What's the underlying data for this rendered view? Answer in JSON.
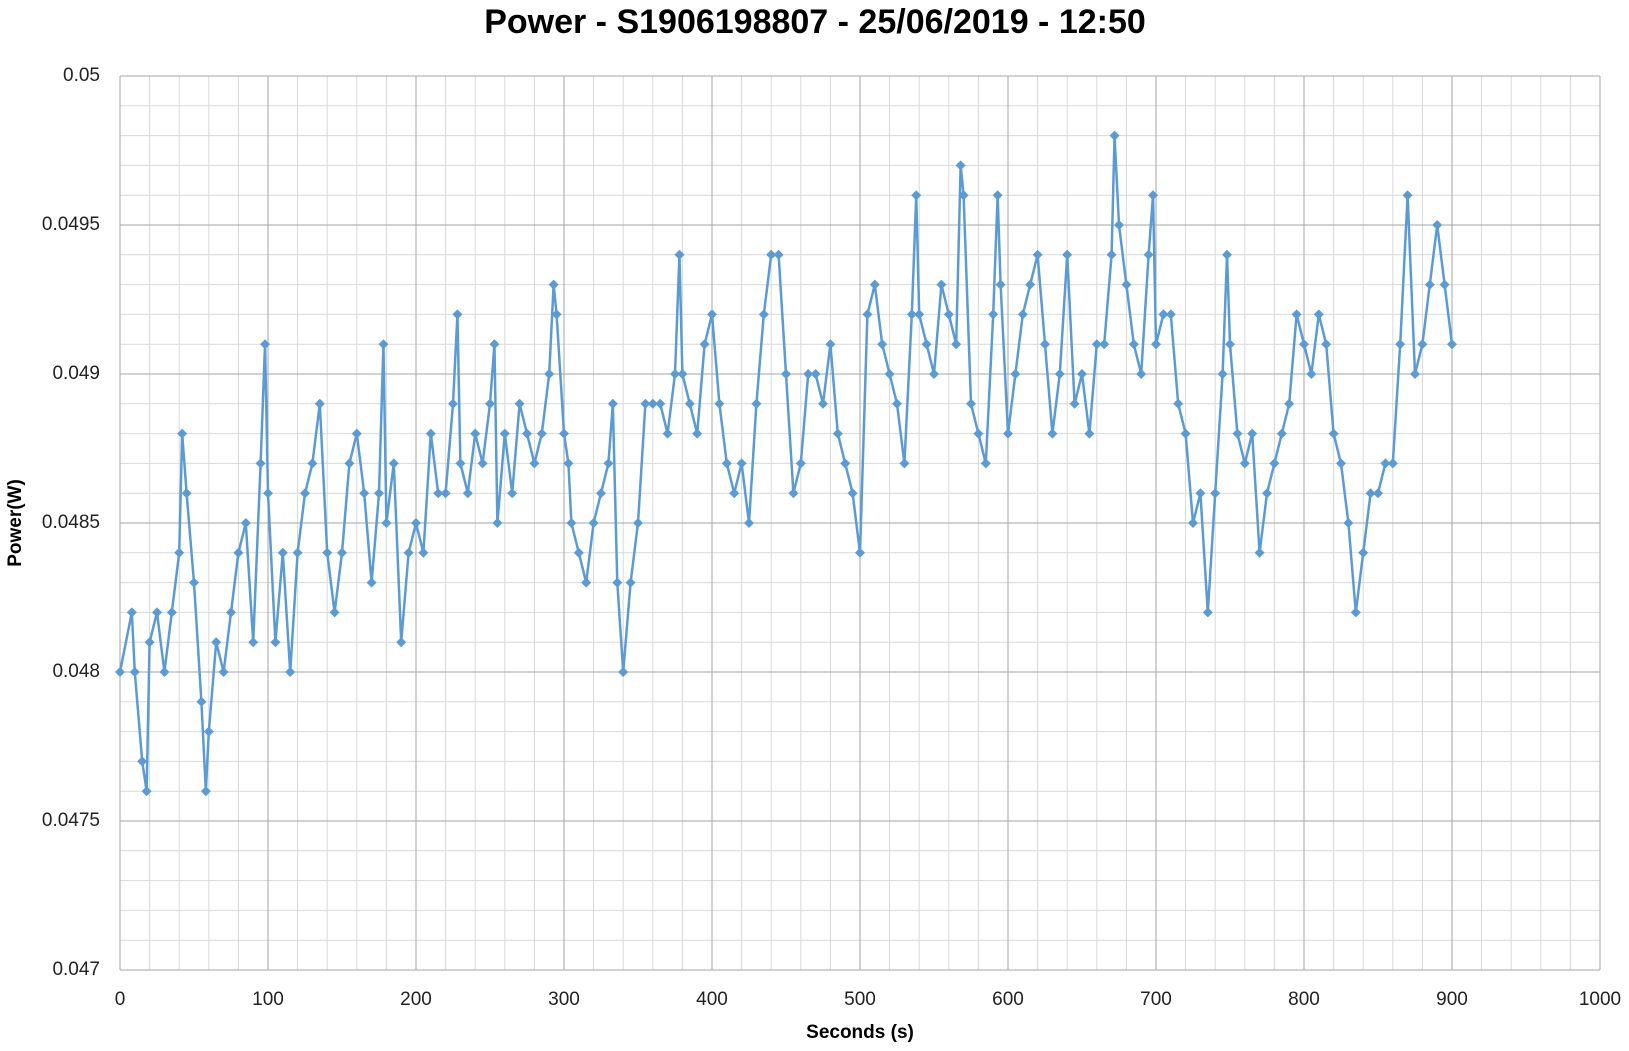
{
  "chart_data": {
    "type": "line",
    "title": "Power - S1906198807 - 25/06/2019 - 12:50",
    "x_label": "Seconds (s)",
    "y_label": "Power(W)",
    "color": "#5b9bd5",
    "grid": true,
    "xlim": [
      0,
      1000
    ],
    "xticks": [
      0,
      100,
      200,
      300,
      400,
      500,
      600,
      700,
      800,
      900,
      1000
    ],
    "ylim": [
      0.047,
      0.05
    ],
    "yticks": [
      0.047,
      0.0475,
      0.048,
      0.0485,
      0.049,
      0.0495,
      0.05
    ],
    "x": [
      0,
      8,
      10,
      15,
      18,
      20,
      25,
      30,
      35,
      40,
      42,
      45,
      50,
      55,
      58,
      60,
      65,
      70,
      75,
      80,
      85,
      90,
      95,
      98,
      100,
      105,
      110,
      115,
      120,
      125,
      130,
      135,
      140,
      145,
      150,
      155,
      160,
      165,
      170,
      175,
      178,
      180,
      185,
      190,
      195,
      200,
      205,
      210,
      215,
      220,
      225,
      228,
      230,
      235,
      240,
      245,
      250,
      253,
      255,
      260,
      265,
      270,
      275,
      280,
      285,
      290,
      293,
      295,
      300,
      303,
      305,
      310,
      315,
      320,
      325,
      330,
      333,
      336,
      340,
      345,
      350,
      355,
      360,
      365,
      370,
      375,
      378,
      380,
      385,
      390,
      395,
      400,
      405,
      410,
      415,
      420,
      425,
      430,
      435,
      440,
      445,
      450,
      455,
      460,
      465,
      470,
      475,
      480,
      485,
      490,
      495,
      500,
      505,
      510,
      515,
      520,
      525,
      530,
      535,
      538,
      540,
      545,
      550,
      555,
      560,
      565,
      568,
      570,
      575,
      580,
      585,
      590,
      593,
      595,
      600,
      605,
      610,
      615,
      620,
      625,
      630,
      635,
      640,
      645,
      650,
      655,
      660,
      665,
      670,
      672,
      675,
      680,
      685,
      690,
      695,
      698,
      700,
      705,
      710,
      715,
      720,
      725,
      730,
      735,
      740,
      745,
      748,
      750,
      755,
      760,
      765,
      770,
      775,
      780,
      785,
      790,
      795,
      800,
      805,
      810,
      815,
      820,
      825,
      830,
      835,
      840,
      845,
      850,
      855,
      860,
      865,
      870,
      875,
      880,
      885,
      890,
      895,
      900
    ],
    "values": [
      0.048,
      0.0482,
      0.048,
      0.0477,
      0.0476,
      0.0481,
      0.0482,
      0.048,
      0.0482,
      0.0484,
      0.0488,
      0.0486,
      0.0483,
      0.0479,
      0.0476,
      0.0478,
      0.0481,
      0.048,
      0.0482,
      0.0484,
      0.0485,
      0.0481,
      0.0487,
      0.0491,
      0.0486,
      0.0481,
      0.0484,
      0.048,
      0.0484,
      0.0486,
      0.0487,
      0.0489,
      0.0484,
      0.0482,
      0.0484,
      0.0487,
      0.0488,
      0.0486,
      0.0483,
      0.0486,
      0.0491,
      0.0485,
      0.0487,
      0.0481,
      0.0484,
      0.0485,
      0.0484,
      0.0488,
      0.0486,
      0.0486,
      0.0489,
      0.0492,
      0.0487,
      0.0486,
      0.0488,
      0.0487,
      0.0489,
      0.0491,
      0.0485,
      0.0488,
      0.0486,
      0.0489,
      0.0488,
      0.0487,
      0.0488,
      0.049,
      0.0493,
      0.0492,
      0.0488,
      0.0487,
      0.0485,
      0.0484,
      0.0483,
      0.0485,
      0.0486,
      0.0487,
      0.0489,
      0.0483,
      0.048,
      0.0483,
      0.0485,
      0.0489,
      0.0489,
      0.0489,
      0.0488,
      0.049,
      0.0494,
      0.049,
      0.0489,
      0.0488,
      0.0491,
      0.0492,
      0.0489,
      0.0487,
      0.0486,
      0.0487,
      0.0485,
      0.0489,
      0.0492,
      0.0494,
      0.0494,
      0.049,
      0.0486,
      0.0487,
      0.049,
      0.049,
      0.0489,
      0.0491,
      0.0488,
      0.0487,
      0.0486,
      0.0484,
      0.0492,
      0.0493,
      0.0491,
      0.049,
      0.0489,
      0.0487,
      0.0492,
      0.0496,
      0.0492,
      0.0491,
      0.049,
      0.0493,
      0.0492,
      0.0491,
      0.0497,
      0.0496,
      0.0489,
      0.0488,
      0.0487,
      0.0492,
      0.0496,
      0.0493,
      0.0488,
      0.049,
      0.0492,
      0.0493,
      0.0494,
      0.0491,
      0.0488,
      0.049,
      0.0494,
      0.0489,
      0.049,
      0.0488,
      0.0491,
      0.0491,
      0.0494,
      0.0498,
      0.0495,
      0.0493,
      0.0491,
      0.049,
      0.0494,
      0.0496,
      0.0491,
      0.0492,
      0.0492,
      0.0489,
      0.0488,
      0.0485,
      0.0486,
      0.0482,
      0.0486,
      0.049,
      0.0494,
      0.0491,
      0.0488,
      0.0487,
      0.0488,
      0.0484,
      0.0486,
      0.0487,
      0.0488,
      0.0489,
      0.0492,
      0.0491,
      0.049,
      0.0492,
      0.0491,
      0.0488,
      0.0487,
      0.0485,
      0.0482,
      0.0484,
      0.0486,
      0.0486,
      0.0487,
      0.0487,
      0.0491,
      0.0496,
      0.049,
      0.0491,
      0.0493,
      0.0495,
      0.0493,
      0.0491
    ]
  }
}
